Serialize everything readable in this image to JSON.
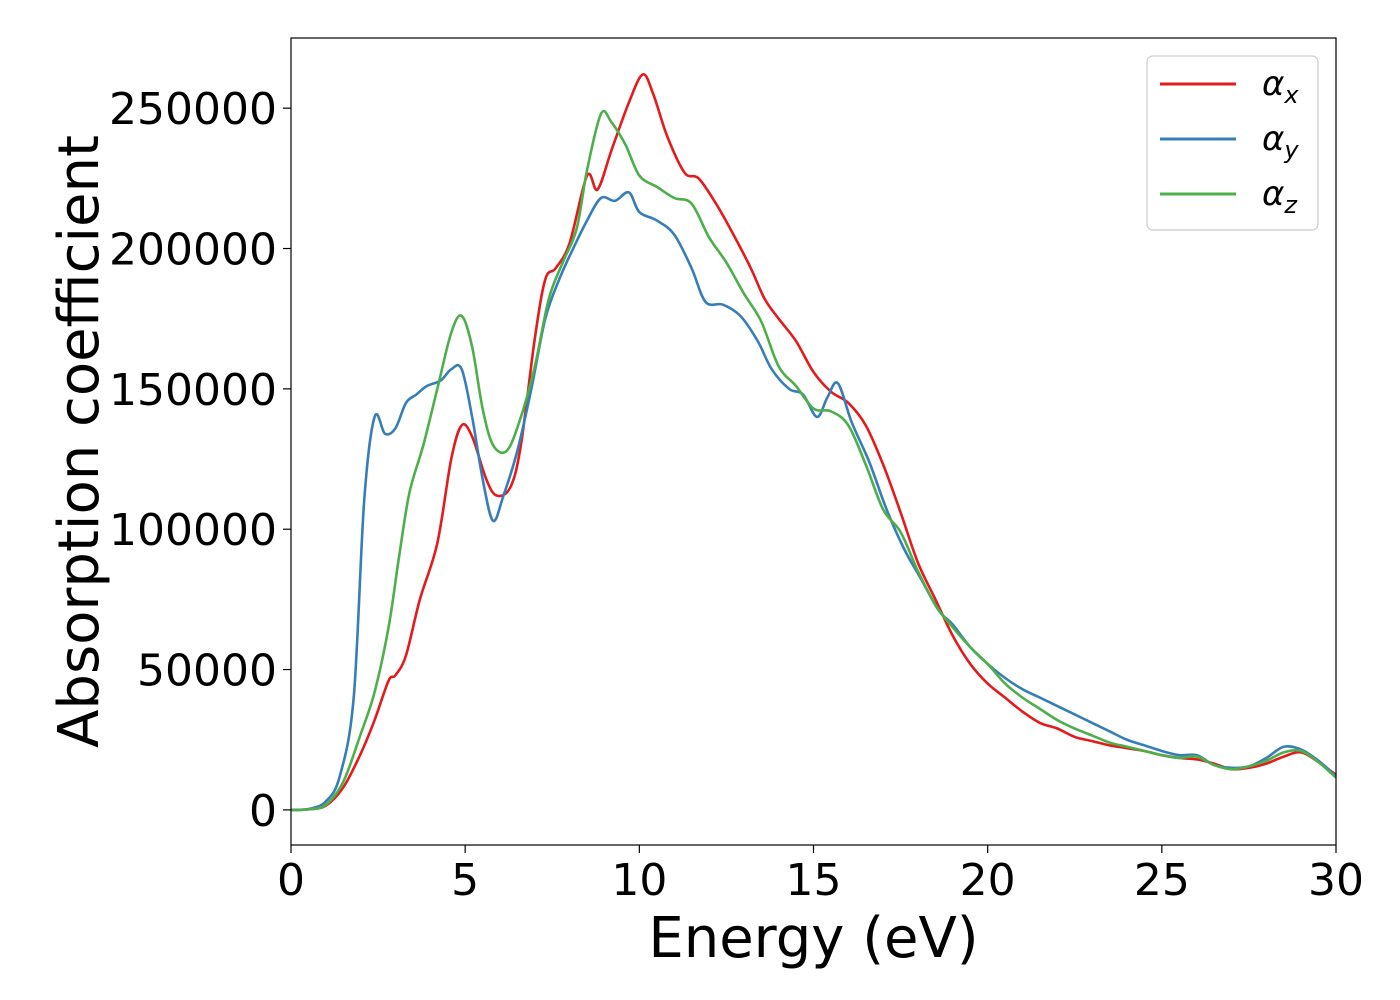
{
  "chart_data": {
    "type": "line",
    "title": "",
    "xlabel": "Energy (eV)",
    "ylabel": "Absorption coefficient",
    "xlim": [
      0,
      30
    ],
    "ylim": [
      -12500,
      275000
    ],
    "xticks": [
      0,
      5,
      10,
      15,
      20,
      25,
      30
    ],
    "yticks": [
      0,
      50000,
      100000,
      150000,
      200000,
      250000
    ],
    "xtick_labels": [
      "0",
      "5",
      "10",
      "15",
      "20",
      "25",
      "30"
    ],
    "ytick_labels": [
      "0",
      "50000",
      "100000",
      "150000",
      "200000",
      "250000"
    ],
    "grid": false,
    "legend_position": "top-right",
    "series": [
      {
        "name": "α",
        "subscript": "x",
        "color": "#e41a1c",
        "points": [
          [
            0,
            0
          ],
          [
            0.5,
            200
          ],
          [
            1.0,
            1500
          ],
          [
            1.5,
            8000
          ],
          [
            2.0,
            20000
          ],
          [
            2.4,
            32000
          ],
          [
            2.8,
            46000
          ],
          [
            3.0,
            48000
          ],
          [
            3.3,
            55000
          ],
          [
            3.7,
            75000
          ],
          [
            4.2,
            95000
          ],
          [
            4.6,
            125000
          ],
          [
            4.9,
            137000
          ],
          [
            5.2,
            133000
          ],
          [
            5.6,
            118000
          ],
          [
            5.9,
            112000
          ],
          [
            6.3,
            115000
          ],
          [
            6.6,
            130000
          ],
          [
            7.0,
            168000
          ],
          [
            7.3,
            189000
          ],
          [
            7.6,
            193000
          ],
          [
            8.0,
            202000
          ],
          [
            8.5,
            226000
          ],
          [
            8.8,
            221000
          ],
          [
            9.2,
            235000
          ],
          [
            9.7,
            252000
          ],
          [
            10.1,
            262000
          ],
          [
            10.4,
            255000
          ],
          [
            10.8,
            240000
          ],
          [
            11.3,
            227000
          ],
          [
            11.7,
            225000
          ],
          [
            12.2,
            216000
          ],
          [
            12.7,
            205000
          ],
          [
            13.2,
            193000
          ],
          [
            13.6,
            182000
          ],
          [
            14.0,
            175000
          ],
          [
            14.5,
            167000
          ],
          [
            15.0,
            156000
          ],
          [
            15.5,
            149000
          ],
          [
            16.0,
            145000
          ],
          [
            16.5,
            137000
          ],
          [
            17.0,
            123000
          ],
          [
            17.5,
            106000
          ],
          [
            18.0,
            88000
          ],
          [
            18.5,
            75000
          ],
          [
            19.0,
            62000
          ],
          [
            19.5,
            52000
          ],
          [
            20.0,
            45000
          ],
          [
            20.5,
            40000
          ],
          [
            21.0,
            35000
          ],
          [
            21.5,
            31000
          ],
          [
            22.0,
            29000
          ],
          [
            22.5,
            26000
          ],
          [
            23.0,
            24500
          ],
          [
            23.5,
            23000
          ],
          [
            24.0,
            22000
          ],
          [
            24.5,
            21000
          ],
          [
            25.0,
            19500
          ],
          [
            25.5,
            18500
          ],
          [
            26.0,
            18000
          ],
          [
            26.5,
            16500
          ],
          [
            27.0,
            14500
          ],
          [
            27.5,
            15000
          ],
          [
            28.0,
            16500
          ],
          [
            28.5,
            19000
          ],
          [
            29.0,
            20500
          ],
          [
            29.5,
            17000
          ],
          [
            30.0,
            12500
          ]
        ]
      },
      {
        "name": "α",
        "subscript": "y",
        "color": "#377eb8",
        "points": [
          [
            0,
            0
          ],
          [
            0.5,
            300
          ],
          [
            1.0,
            3000
          ],
          [
            1.4,
            12000
          ],
          [
            1.8,
            40000
          ],
          [
            2.1,
            110000
          ],
          [
            2.4,
            140000
          ],
          [
            2.7,
            134000
          ],
          [
            3.0,
            136000
          ],
          [
            3.3,
            145000
          ],
          [
            3.6,
            148000
          ],
          [
            3.9,
            151000
          ],
          [
            4.3,
            153000
          ],
          [
            4.6,
            157000
          ],
          [
            4.9,
            157000
          ],
          [
            5.2,
            140000
          ],
          [
            5.5,
            118000
          ],
          [
            5.8,
            103000
          ],
          [
            6.1,
            112000
          ],
          [
            6.5,
            128000
          ],
          [
            6.9,
            150000
          ],
          [
            7.3,
            175000
          ],
          [
            7.7,
            189000
          ],
          [
            8.1,
            200000
          ],
          [
            8.5,
            210000
          ],
          [
            8.9,
            218000
          ],
          [
            9.3,
            217000
          ],
          [
            9.7,
            220000
          ],
          [
            10.0,
            213000
          ],
          [
            10.5,
            210000
          ],
          [
            11.0,
            205000
          ],
          [
            11.5,
            193000
          ],
          [
            11.9,
            181000
          ],
          [
            12.4,
            180000
          ],
          [
            12.9,
            176000
          ],
          [
            13.4,
            167000
          ],
          [
            13.8,
            157000
          ],
          [
            14.3,
            150000
          ],
          [
            14.7,
            148000
          ],
          [
            15.1,
            140000
          ],
          [
            15.4,
            147000
          ],
          [
            15.7,
            152000
          ],
          [
            16.1,
            138000
          ],
          [
            16.6,
            124000
          ],
          [
            17.1,
            107000
          ],
          [
            17.6,
            93000
          ],
          [
            18.1,
            82000
          ],
          [
            18.6,
            71000
          ],
          [
            19.0,
            66000
          ],
          [
            19.5,
            58000
          ],
          [
            20.0,
            52000
          ],
          [
            20.5,
            47000
          ],
          [
            21.0,
            43000
          ],
          [
            21.5,
            40000
          ],
          [
            22.0,
            37000
          ],
          [
            22.5,
            34000
          ],
          [
            23.0,
            31000
          ],
          [
            23.5,
            28000
          ],
          [
            24.0,
            25000
          ],
          [
            24.5,
            23000
          ],
          [
            25.0,
            21000
          ],
          [
            25.5,
            19500
          ],
          [
            26.0,
            19500
          ],
          [
            26.5,
            16000
          ],
          [
            27.0,
            15000
          ],
          [
            27.5,
            15500
          ],
          [
            28.0,
            18500
          ],
          [
            28.5,
            22500
          ],
          [
            29.0,
            21500
          ],
          [
            29.5,
            17500
          ],
          [
            30.0,
            12000
          ]
        ]
      },
      {
        "name": "α",
        "subscript": "z",
        "color": "#4daf4a",
        "points": [
          [
            0,
            0
          ],
          [
            0.5,
            200
          ],
          [
            1.0,
            1800
          ],
          [
            1.5,
            10000
          ],
          [
            2.0,
            27000
          ],
          [
            2.4,
            42000
          ],
          [
            2.8,
            65000
          ],
          [
            3.1,
            90000
          ],
          [
            3.4,
            113000
          ],
          [
            3.8,
            130000
          ],
          [
            4.2,
            150000
          ],
          [
            4.6,
            170000
          ],
          [
            4.9,
            176000
          ],
          [
            5.2,
            165000
          ],
          [
            5.5,
            143000
          ],
          [
            5.8,
            130000
          ],
          [
            6.2,
            128000
          ],
          [
            6.6,
            140000
          ],
          [
            7.0,
            158000
          ],
          [
            7.4,
            182000
          ],
          [
            7.8,
            195000
          ],
          [
            8.2,
            207000
          ],
          [
            8.5,
            228000
          ],
          [
            8.9,
            248000
          ],
          [
            9.2,
            245000
          ],
          [
            9.6,
            237000
          ],
          [
            10.0,
            226000
          ],
          [
            10.5,
            222000
          ],
          [
            11.0,
            218000
          ],
          [
            11.5,
            216000
          ],
          [
            12.0,
            204000
          ],
          [
            12.5,
            195000
          ],
          [
            13.0,
            184000
          ],
          [
            13.5,
            174000
          ],
          [
            14.0,
            158000
          ],
          [
            14.5,
            151000
          ],
          [
            15.0,
            143000
          ],
          [
            15.5,
            142000
          ],
          [
            16.0,
            137000
          ],
          [
            16.5,
            123000
          ],
          [
            17.0,
            107000
          ],
          [
            17.5,
            99000
          ],
          [
            18.0,
            85000
          ],
          [
            18.5,
            73000
          ],
          [
            19.0,
            65000
          ],
          [
            19.5,
            58000
          ],
          [
            20.0,
            52000
          ],
          [
            20.5,
            45000
          ],
          [
            21.0,
            40000
          ],
          [
            21.5,
            36000
          ],
          [
            22.0,
            32000
          ],
          [
            22.5,
            29000
          ],
          [
            23.0,
            26500
          ],
          [
            23.5,
            24000
          ],
          [
            24.0,
            22500
          ],
          [
            24.5,
            21000
          ],
          [
            25.0,
            19500
          ],
          [
            25.5,
            18500
          ],
          [
            26.0,
            19000
          ],
          [
            26.5,
            16000
          ],
          [
            27.0,
            14500
          ],
          [
            27.5,
            15500
          ],
          [
            28.0,
            17500
          ],
          [
            28.5,
            20500
          ],
          [
            29.0,
            21000
          ],
          [
            29.5,
            17000
          ],
          [
            30.0,
            11500
          ]
        ]
      }
    ]
  }
}
